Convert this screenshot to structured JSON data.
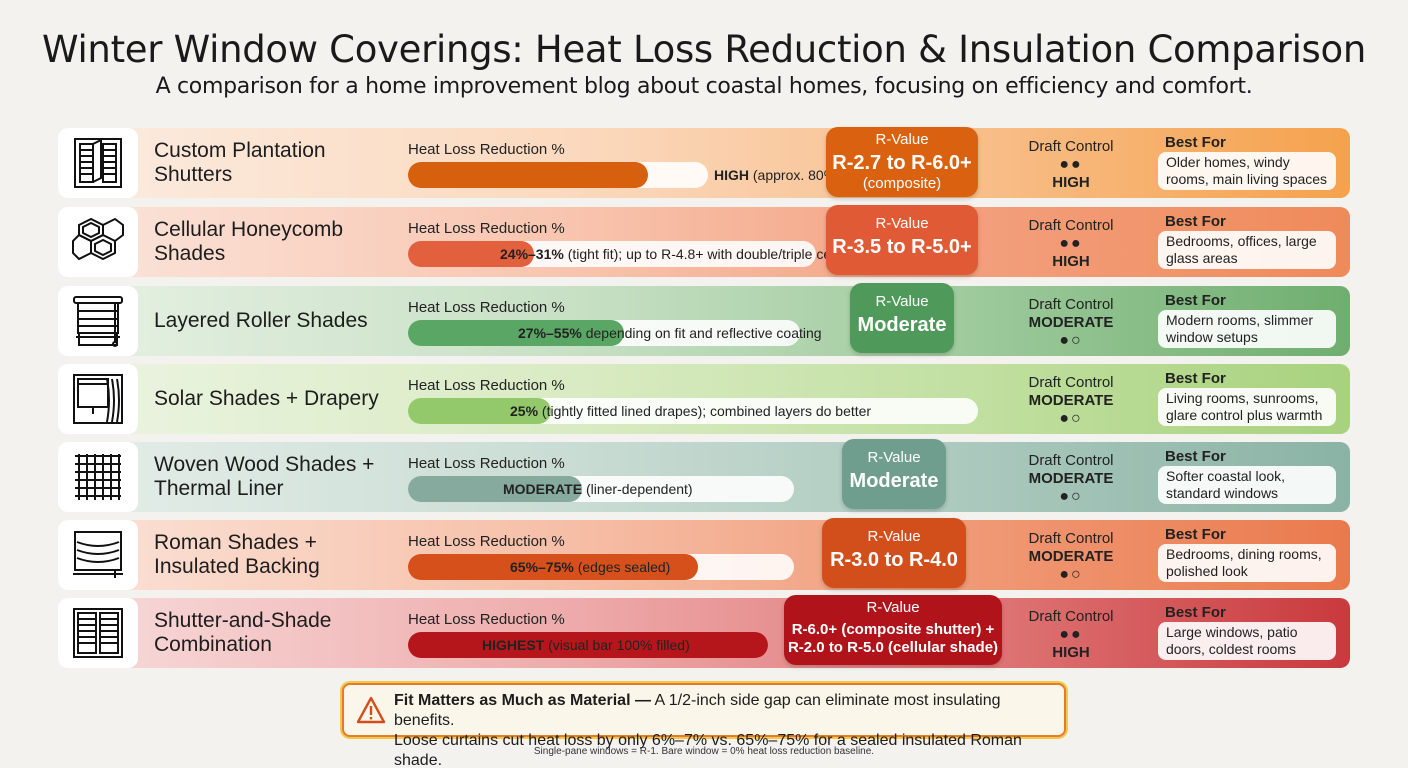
{
  "title": "Winter Window Coverings: Heat Loss Reduction & Insulation Comparison",
  "subtitle": "A comparison for a home improvement blog about coastal homes, focusing on efficiency and comfort.",
  "labels": {
    "heat_loss": "Heat Loss Reduction %",
    "r_value": "R-Value",
    "draft": "Draft Control",
    "best_for": "Best For"
  },
  "rows": [
    {
      "name": "Custom Plantation Shutters",
      "icon": "plantation-shutter-icon",
      "heat_loss_bold": "HIGH",
      "heat_loss_text": "(approx. 80%)",
      "heat_loss_fill": 0.8,
      "fill_color": "#d6600e",
      "r_value": "R-2.7 to R-6.0+",
      "r_sub": "(composite)",
      "r_color": "#d9610f",
      "draft_level": "HIGH",
      "draft_dots": "●●",
      "best_for": "Older homes, windy rooms, main living spaces",
      "bg": "linear-gradient(90deg,#fbece1 0%,#fbd9be 40%,#f8bf8c 70%,#f5a24c 100%)"
    },
    {
      "name": "Cellular Honeycomb Shades",
      "icon": "honeycomb-cell-icon",
      "heat_loss_bold": "24%–31%",
      "heat_loss_text": "(tight fit); up to R-4.8+ with double/triple cell",
      "heat_loss_fill": 0.31,
      "fill_color": "#e2603d",
      "r_value": "R-3.5 to R-5.0+",
      "r_sub": "",
      "r_color": "#e05a35",
      "draft_level": "HIGH",
      "draft_dots": "●●",
      "best_for": "Bedrooms, offices, large glass areas",
      "bg": "linear-gradient(90deg,#fbe5dc 0%,#f8c4ae 40%,#f3a07e 70%,#ef8a5a 100%)"
    },
    {
      "name": "Layered Roller Shades",
      "icon": "roller-shade-icon",
      "heat_loss_bold": "27%–55%",
      "heat_loss_text": "depending on fit and reflective coating",
      "heat_loss_fill": 0.55,
      "fill_color": "#5aa765",
      "r_value": "Moderate",
      "r_sub": "",
      "r_color": "#4f9a5a",
      "draft_level": "MODERATE",
      "draft_dots": "●○",
      "best_for": "Modern rooms, slimmer window setups",
      "bg": "linear-gradient(90deg,#e7f1e4 0%,#c7e0c4 40%,#9fcb9d 70%,#6fae6f 100%)"
    },
    {
      "name": "Solar Shades + Drapery",
      "icon": "drapery-icon",
      "heat_loss_bold": "25%",
      "heat_loss_text": "(tightly fitted lined drapes); combined layers do better",
      "heat_loss_fill": 0.25,
      "fill_color": "#93c96a",
      "r_value": "",
      "r_sub": "",
      "r_color": "",
      "draft_level": "MODERATE",
      "draft_dots": "●○",
      "best_for": "Living rooms, sunrooms, glare control plus warmth",
      "bg": "linear-gradient(90deg,#ecf4e2 0%,#d9ebc3 40%,#c2e0a2 70%,#a8d27e 100%)"
    },
    {
      "name": "Woven Wood Shades + Thermal Liner",
      "icon": "woven-wood-icon",
      "heat_loss_bold": "MODERATE",
      "heat_loss_text": "(liner-dependent)",
      "heat_loss_fill": 0.45,
      "fill_color": "#86ab9e",
      "r_value": "Moderate",
      "r_sub": "",
      "r_color": "#6f9e8f",
      "draft_level": "MODERATE",
      "draft_dots": "●○",
      "best_for": "Softer coastal look, standard windows",
      "bg": "linear-gradient(90deg,#e6eeea 0%,#c9dcd4 40%,#acc9be 70%,#8ab3a5 100%)"
    },
    {
      "name": "Roman Shades + Insulated Backing",
      "icon": "roman-shade-icon",
      "heat_loss_bold": "65%–75%",
      "heat_loss_text": "(edges sealed)",
      "heat_loss_fill": 0.75,
      "fill_color": "#d6501c",
      "r_value": "R-3.0 to R-4.0",
      "r_sub": "",
      "r_color": "#d24f1b",
      "draft_level": "MODERATE",
      "draft_dots": "●○",
      "best_for": "Bedrooms, dining rooms, polished look",
      "bg": "linear-gradient(90deg,#fbe3d8 0%,#f6bea6 40%,#f09a77 70%,#ea7a4d 100%)"
    },
    {
      "name": "Shutter-and-Shade Combination",
      "icon": "shutter-shade-combo-icon",
      "heat_loss_bold": "HIGHEST",
      "heat_loss_text": "(visual bar 100% filled)",
      "heat_loss_fill": 1.0,
      "fill_color": "#b5161b",
      "r_value": "R-6.0+ (composite shutter) +",
      "r_sub": "R-2.0 to R-5.0 (cellular shade)",
      "r_color": "#b0141a",
      "draft_level": "HIGH",
      "draft_dots": "●●",
      "best_for": "Large windows, patio doors, coldest rooms",
      "bg": "linear-gradient(90deg,#f8dcdc 0%,#eeaaaa 40%,#e07a7a 70%,#c9393d 100%)"
    }
  ],
  "callout": {
    "icon": "warning-icon",
    "bold": "Fit Matters as Much as Material —",
    "line1": " A 1/2-inch side gap can eliminate most insulating benefits.",
    "line2": "Loose curtains cut heat loss by only 6%–7% vs. 65%–75% for a sealed insulated Roman shade."
  },
  "footnote": "Single-pane windows = R-1. Bare window = 0% heat loss reduction baseline."
}
